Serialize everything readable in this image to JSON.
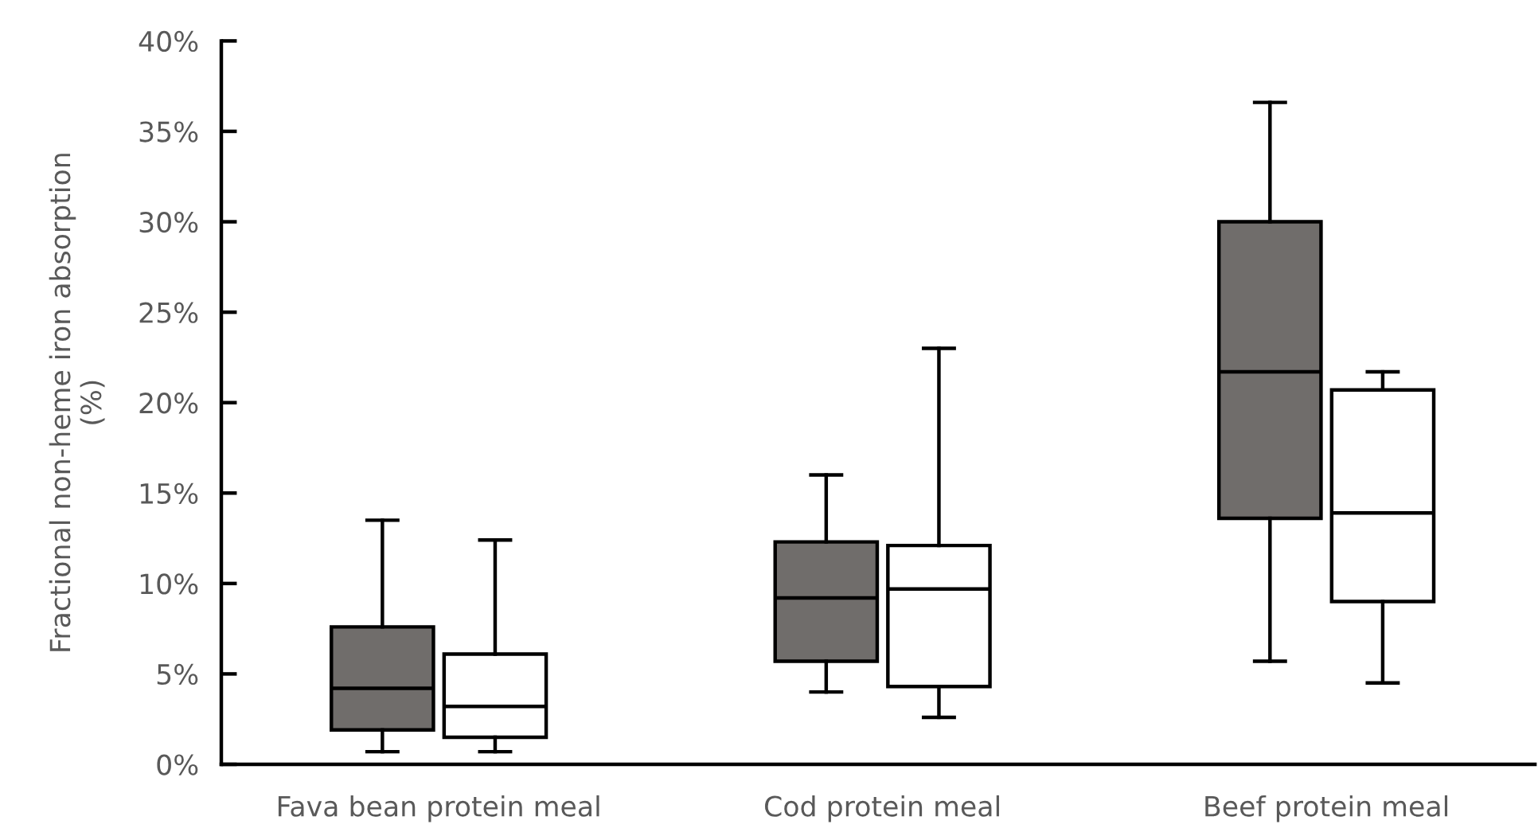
{
  "chart_data": {
    "type": "box",
    "ylabel": "Fractional non-heme iron absorption\n(%)",
    "categories": [
      "Fava bean protein meal",
      "Cod protein meal",
      "Beef protein meal"
    ],
    "ylim": [
      0,
      40
    ],
    "yticks": [
      {
        "value": 0,
        "label": "0%"
      },
      {
        "value": 5,
        "label": "5%"
      },
      {
        "value": 10,
        "label": "10%"
      },
      {
        "value": 15,
        "label": "15%"
      },
      {
        "value": 20,
        "label": "20%"
      },
      {
        "value": 25,
        "label": "25%"
      },
      {
        "value": 30,
        "label": "30%"
      },
      {
        "value": 35,
        "label": "35%"
      },
      {
        "value": 40,
        "label": "40%"
      }
    ],
    "series": [
      {
        "color": "#706d6b",
        "boxes": [
          {
            "low": 0.7,
            "q1": 1.9,
            "median": 4.2,
            "q3": 7.6,
            "high": 13.5
          },
          {
            "low": 4.0,
            "q1": 5.7,
            "median": 9.2,
            "q3": 12.3,
            "high": 16.0
          },
          {
            "low": 5.7,
            "q1": 13.6,
            "median": 21.7,
            "q3": 30.0,
            "high": 36.6
          }
        ]
      },
      {
        "color": "#ffffff",
        "boxes": [
          {
            "low": 0.7,
            "q1": 1.5,
            "median": 3.2,
            "q3": 6.1,
            "high": 12.4
          },
          {
            "low": 2.6,
            "q1": 4.3,
            "median": 9.7,
            "q3": 12.1,
            "high": 23.0
          },
          {
            "low": 4.5,
            "q1": 9.0,
            "median": 13.9,
            "q3": 20.7,
            "high": 21.7
          }
        ]
      }
    ]
  }
}
